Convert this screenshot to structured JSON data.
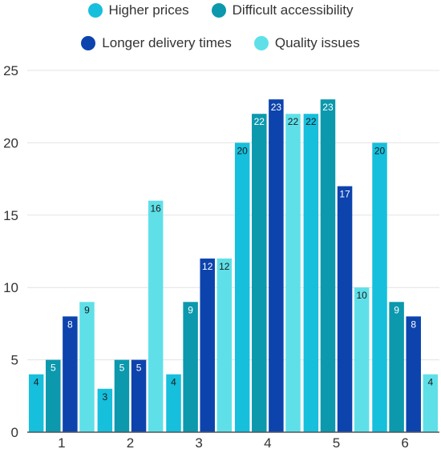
{
  "chart_data": {
    "type": "bar",
    "categories": [
      "1",
      "2",
      "3",
      "4",
      "5",
      "6"
    ],
    "series": [
      {
        "name": "Higher prices",
        "color": "#16bfdc",
        "values": [
          4,
          3,
          4,
          20,
          22,
          20
        ]
      },
      {
        "name": "Difficult accessibility",
        "color": "#0c98ad",
        "values": [
          5,
          5,
          9,
          22,
          23,
          9
        ]
      },
      {
        "name": "Longer delivery times",
        "color": "#0d43ad",
        "values": [
          8,
          5,
          12,
          23,
          17,
          8
        ]
      },
      {
        "name": "Quality issues",
        "color": "#5fe0e8",
        "values": [
          9,
          16,
          12,
          22,
          10,
          4
        ]
      }
    ],
    "y_ticks": [
      0,
      5,
      10,
      15,
      20,
      25
    ],
    "ylim": [
      0,
      25
    ],
    "grid": true,
    "legend_position": "top",
    "data_labels": true
  }
}
